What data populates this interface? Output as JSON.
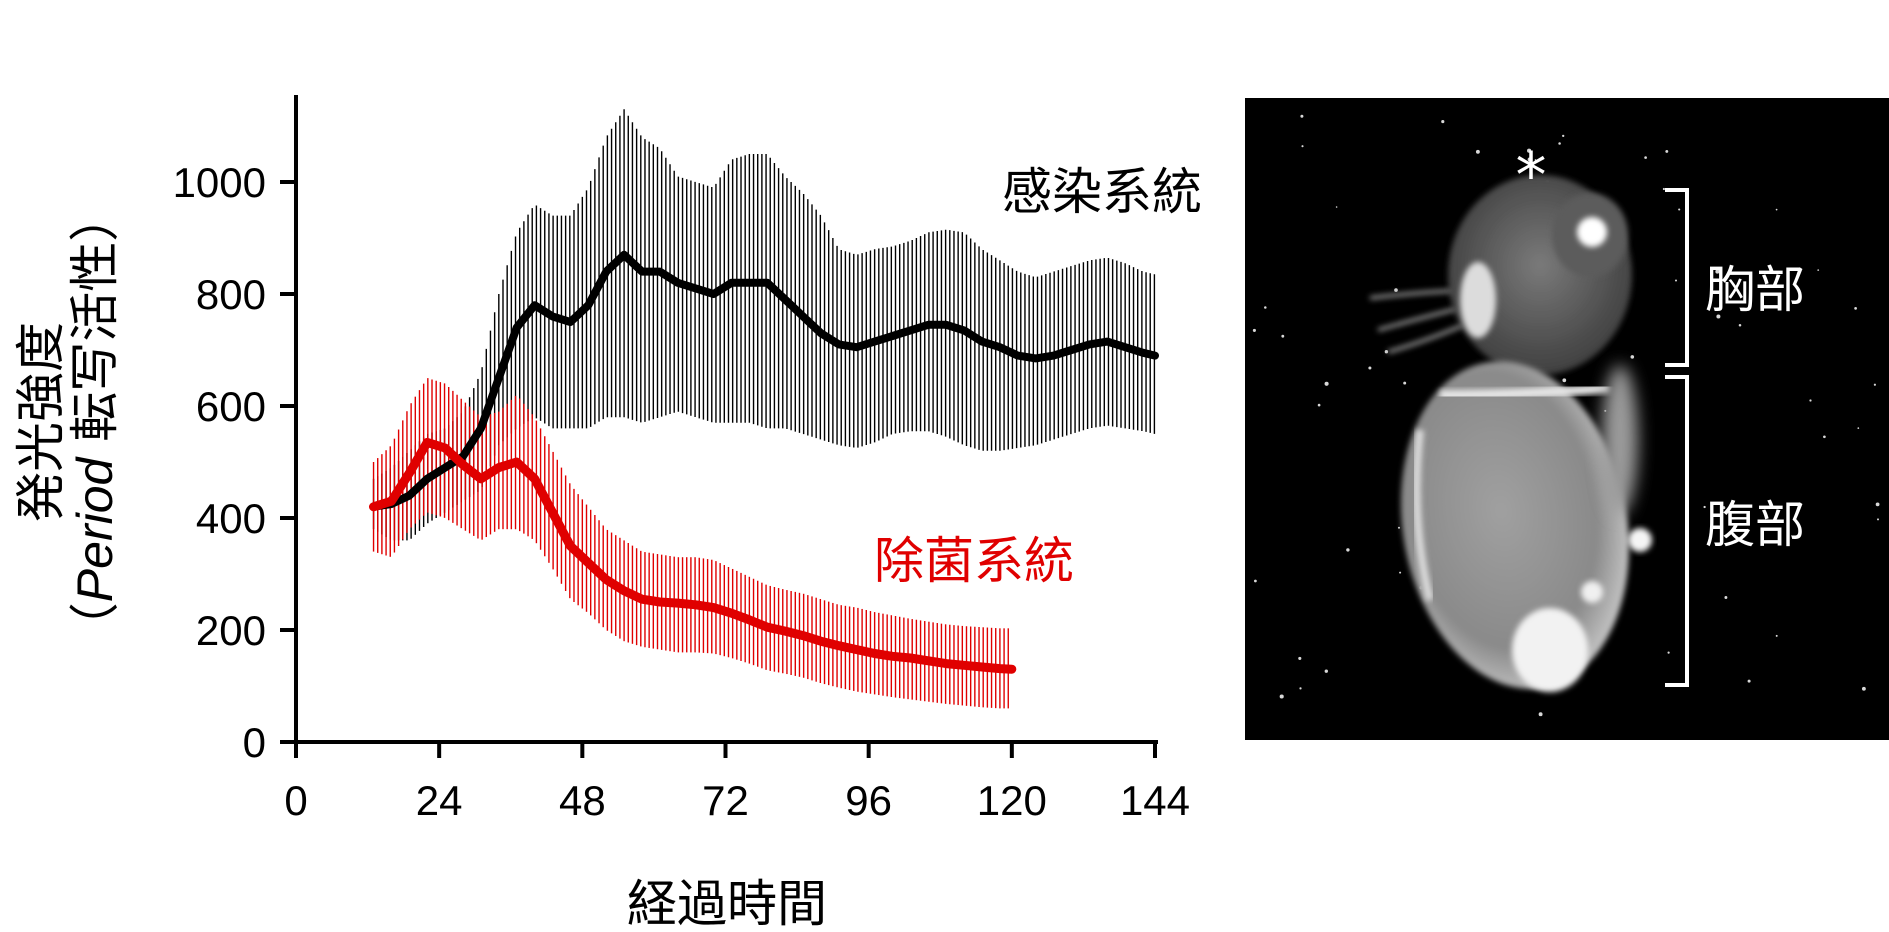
{
  "colors": {
    "infected": "#000000",
    "sterile": "#e00000",
    "photo_background": "#000000",
    "photo_annotation": "#ffffff"
  },
  "chart_data": {
    "type": "line",
    "title": "",
    "xlabel": "経過時間",
    "ylabel_line1": "発光強度",
    "ylabel_line2_open": "（",
    "ylabel_line2_italic": "Period",
    "ylabel_line2_rest": " 転写活性）",
    "xlim": [
      0,
      144
    ],
    "ylim": [
      0,
      1150
    ],
    "x_ticks": [
      0,
      24,
      48,
      72,
      96,
      120,
      144
    ],
    "y_ticks": [
      0,
      200,
      400,
      600,
      800,
      1000
    ],
    "grid": false,
    "error_bars": "vertical lines at each sample (mean ± spread)",
    "series": [
      {
        "name": "感染系統",
        "color": "#000000",
        "x": [
          13,
          16,
          19,
          22,
          25,
          28,
          31,
          34,
          37,
          40,
          43,
          46,
          49,
          52,
          55,
          58,
          61,
          64,
          67,
          70,
          73,
          76,
          79,
          82,
          85,
          88,
          91,
          94,
          97,
          100,
          103,
          106,
          109,
          112,
          115,
          118,
          121,
          124,
          127,
          130,
          133,
          136,
          139,
          142,
          144
        ],
        "values": [
          420,
          425,
          440,
          470,
          490,
          510,
          560,
          650,
          740,
          780,
          760,
          750,
          780,
          840,
          870,
          840,
          840,
          820,
          810,
          800,
          820,
          820,
          820,
          790,
          760,
          730,
          710,
          705,
          715,
          725,
          735,
          745,
          745,
          735,
          715,
          705,
          690,
          685,
          690,
          700,
          710,
          715,
          705,
          695,
          690
        ],
        "lower": [
          380,
          360,
          360,
          390,
          410,
          430,
          450,
          530,
          560,
          580,
          560,
          560,
          560,
          580,
          580,
          570,
          580,
          590,
          580,
          570,
          570,
          570,
          560,
          560,
          550,
          540,
          530,
          525,
          535,
          550,
          555,
          555,
          545,
          530,
          520,
          520,
          525,
          530,
          540,
          550,
          560,
          565,
          560,
          555,
          550
        ],
        "upper": [
          470,
          490,
          520,
          550,
          560,
          590,
          660,
          800,
          910,
          960,
          940,
          940,
          990,
          1080,
          1130,
          1080,
          1060,
          1010,
          1000,
          990,
          1040,
          1050,
          1050,
          1010,
          980,
          940,
          880,
          870,
          880,
          885,
          895,
          910,
          915,
          910,
          880,
          860,
          840,
          830,
          840,
          850,
          860,
          865,
          855,
          840,
          835
        ]
      },
      {
        "name": "除菌系統",
        "color": "#e00000",
        "x": [
          13,
          16,
          19,
          22,
          25,
          28,
          31,
          34,
          37,
          40,
          43,
          46,
          49,
          52,
          55,
          58,
          61,
          64,
          67,
          70,
          73,
          76,
          79,
          82,
          85,
          88,
          91,
          94,
          97,
          100,
          103,
          106,
          109,
          112,
          115,
          118,
          120
        ],
        "values": [
          420,
          430,
          480,
          535,
          525,
          495,
          470,
          490,
          500,
          470,
          410,
          350,
          320,
          290,
          270,
          255,
          250,
          248,
          245,
          240,
          230,
          218,
          205,
          198,
          190,
          180,
          172,
          165,
          158,
          153,
          150,
          145,
          140,
          137,
          134,
          131,
          130
        ],
        "lower": [
          340,
          330,
          380,
          410,
          400,
          380,
          360,
          380,
          380,
          360,
          310,
          255,
          230,
          200,
          180,
          170,
          165,
          160,
          160,
          158,
          150,
          140,
          128,
          122,
          115,
          105,
          97,
          90,
          85,
          80,
          76,
          72,
          68,
          65,
          62,
          60,
          60
        ],
        "upper": [
          500,
          530,
          600,
          650,
          640,
          610,
          580,
          590,
          620,
          580,
          520,
          460,
          420,
          380,
          360,
          340,
          335,
          330,
          330,
          325,
          310,
          295,
          280,
          272,
          265,
          255,
          245,
          240,
          232,
          226,
          220,
          215,
          210,
          207,
          205,
          203,
          203
        ]
      }
    ]
  },
  "photo": {
    "asterisk": "*",
    "regions": [
      {
        "label": "胸部"
      },
      {
        "label": "腹部"
      }
    ]
  }
}
